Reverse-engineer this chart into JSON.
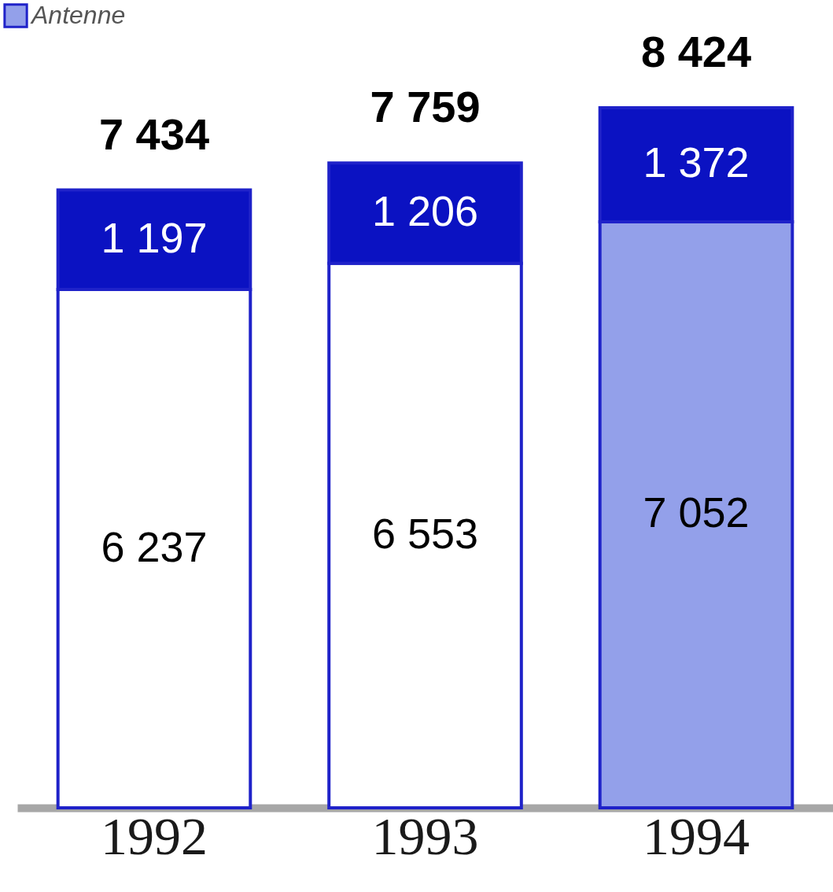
{
  "chart_data": {
    "type": "bar",
    "stacked": true,
    "categories": [
      "1992",
      "1993",
      "1994"
    ],
    "series": [
      {
        "name": "Antenne",
        "color": "#93a0ea",
        "colors": [
          "#ffffff",
          "#ffffff",
          "#93a0ea"
        ],
        "values": [
          6237,
          6553,
          7052
        ],
        "value_labels": [
          "6 237",
          "6 553",
          "7 052"
        ]
      },
      {
        "color": "#0b12c2",
        "values": [
          1197,
          1206,
          1372
        ],
        "value_labels": [
          "1 197",
          "1 206",
          "1 372"
        ]
      }
    ],
    "totals": [
      "7 434",
      "7 759",
      "8 424"
    ],
    "legend": "top left"
  }
}
